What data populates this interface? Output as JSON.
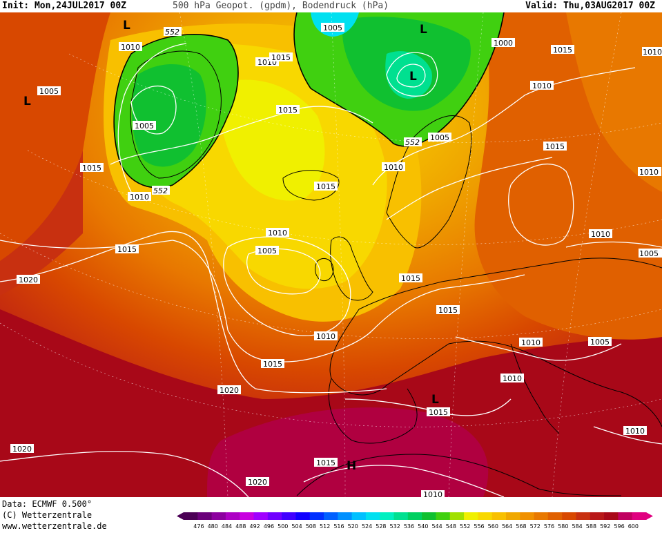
{
  "header": {
    "init": "Init: Mon,24JUL2017 00Z",
    "title": "500 hPa Geopot. (gpdm), Bodendruck (hPa)",
    "valid": "Valid: Thu,03AUG2017 00Z"
  },
  "footer": {
    "data_line": "Data: ECMWF  0.500°",
    "copyright": "(C) Wetterzentrale",
    "url": "www.wetterzentrale.de"
  },
  "colors": {
    "land_outline": "#000000",
    "isobar": "#ffffff",
    "gp552": "#000000"
  },
  "legend": {
    "levels": [
      "476",
      "480",
      "484",
      "488",
      "492",
      "496",
      "500",
      "504",
      "508",
      "512",
      "516",
      "520",
      "524",
      "528",
      "532",
      "536",
      "540",
      "544",
      "548",
      "552",
      "556",
      "560",
      "564",
      "568",
      "572",
      "576",
      "580",
      "584",
      "588",
      "592",
      "596",
      "600"
    ],
    "colors": [
      "#4b0055",
      "#6a007a",
      "#8c009f",
      "#ad00c4",
      "#c800e0",
      "#a000ff",
      "#7000ff",
      "#4000ff",
      "#1000ff",
      "#0030ff",
      "#0060ff",
      "#0090ff",
      "#00c0ff",
      "#00e0f0",
      "#00f0c0",
      "#00e090",
      "#00d060",
      "#10c030",
      "#40d010",
      "#a0e000",
      "#f0f000",
      "#f8d800",
      "#f8c000",
      "#f0a800",
      "#f09000",
      "#e87800",
      "#e06000",
      "#d84800",
      "#c83010",
      "#b81818",
      "#a80818",
      "#c00060",
      "#e00080"
    ]
  },
  "labels": {
    "isobars": [
      {
        "text": "1010"
      },
      {
        "text": "1020"
      },
      {
        "text": "1015"
      },
      {
        "text": "1005"
      },
      {
        "text": "1010"
      },
      {
        "text": "552"
      },
      {
        "text": "1010"
      },
      {
        "text": "1015"
      },
      {
        "text": "1015"
      },
      {
        "text": "1015"
      },
      {
        "text": "1005"
      },
      {
        "text": "1000"
      },
      {
        "text": "1005"
      },
      {
        "text": "1010"
      },
      {
        "text": "1010"
      },
      {
        "text": "1015"
      },
      {
        "text": "1015"
      },
      {
        "text": "552"
      },
      {
        "text": "1010"
      },
      {
        "text": "1005"
      },
      {
        "text": "1015"
      },
      {
        "text": "1005"
      },
      {
        "text": "1010"
      },
      {
        "text": "1010"
      },
      {
        "text": "1005"
      },
      {
        "text": "1015"
      },
      {
        "text": "1020"
      },
      {
        "text": "1015"
      },
      {
        "text": "1010"
      },
      {
        "text": "1015"
      },
      {
        "text": "1010"
      },
      {
        "text": "1010"
      },
      {
        "text": "1005"
      },
      {
        "text": "1010"
      },
      {
        "text": "1020"
      },
      {
        "text": "1015"
      },
      {
        "text": "1020"
      },
      {
        "text": "1015"
      },
      {
        "text": "1020"
      },
      {
        "text": "1010"
      },
      {
        "text": "1010"
      },
      {
        "text": "1010"
      },
      {
        "text": "1010"
      },
      {
        "text": "1015"
      },
      {
        "text": "552"
      }
    ],
    "pressure_centers": [
      {
        "text": "L"
      },
      {
        "text": "L"
      },
      {
        "text": "L"
      },
      {
        "text": "L"
      },
      {
        "text": "L"
      },
      {
        "text": "H"
      }
    ]
  }
}
